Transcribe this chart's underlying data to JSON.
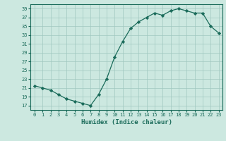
{
  "x": [
    0,
    1,
    2,
    3,
    4,
    5,
    6,
    7,
    8,
    9,
    10,
    11,
    12,
    13,
    14,
    15,
    16,
    17,
    18,
    19,
    20,
    21,
    22,
    23
  ],
  "y": [
    21.5,
    21.0,
    20.5,
    19.5,
    18.5,
    18.0,
    17.5,
    17.0,
    19.5,
    23.0,
    28.0,
    31.5,
    34.5,
    36.0,
    37.0,
    38.0,
    37.5,
    38.5,
    39.0,
    38.5,
    38.0,
    38.0,
    35.0,
    33.5
  ],
  "xlabel": "Humidex (Indice chaleur)",
  "line_color": "#1a6b5a",
  "marker_color": "#1a6b5a",
  "bg_color": "#cce8e0",
  "grid_color": "#a0c8c0",
  "axes_color": "#1a6b5a",
  "tick_label_color": "#1a6b5a",
  "xlabel_color": "#1a6b5a",
  "xlim": [
    -0.5,
    23.5
  ],
  "ylim": [
    16,
    40
  ],
  "yticks": [
    17,
    19,
    21,
    23,
    25,
    27,
    29,
    31,
    33,
    35,
    37,
    39
  ],
  "xticks": [
    0,
    1,
    2,
    3,
    4,
    5,
    6,
    7,
    8,
    9,
    10,
    11,
    12,
    13,
    14,
    15,
    16,
    17,
    18,
    19,
    20,
    21,
    22,
    23
  ]
}
